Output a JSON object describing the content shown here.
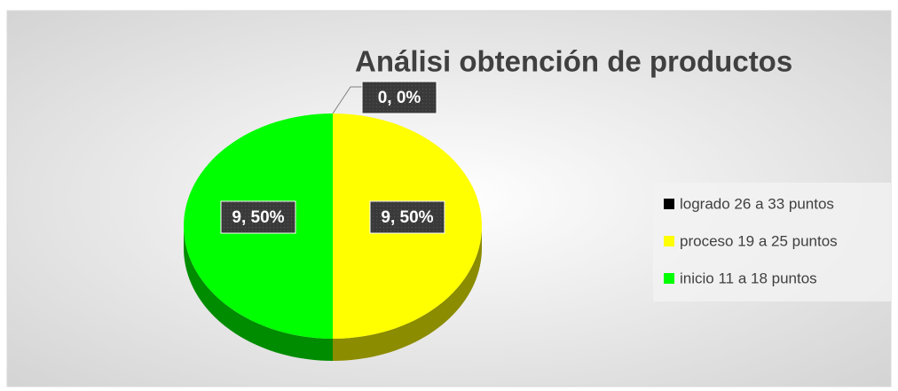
{
  "chart_data": {
    "type": "pie",
    "title": "Análisi obtención de productos",
    "categories": [
      "logrado 26 a 33 puntos",
      "proceso 19 a 25 puntos",
      "inicio 11 a 18 puntos"
    ],
    "values": [
      0,
      9,
      9
    ],
    "value_labels": [
      "0, 0%",
      "9, 50%",
      "9, 50%"
    ],
    "colors": [
      "#000000",
      "#ffff00",
      "#00ff00"
    ],
    "legend": "right"
  }
}
